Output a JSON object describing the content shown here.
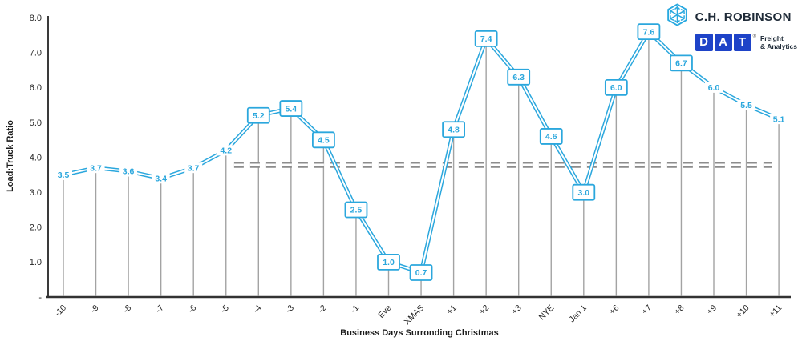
{
  "branding": {
    "company_name": "C.H. ROBINSON",
    "dat_letters": [
      "D",
      "A",
      "T"
    ],
    "dat_registered": "®",
    "dat_tagline_line1": "Freight",
    "dat_tagline_line2": "& Analytics",
    "chr_blue": "#29A9E0",
    "dat_blue": "#1E43C8",
    "text_navy": "#1F2B38"
  },
  "chart_data": {
    "type": "line",
    "title": "",
    "xlabel": "Business Days Surronding Christmas",
    "ylabel": "Load:Truck Ratio",
    "categories": [
      "-10",
      "-9",
      "-8",
      "-7",
      "-6",
      "-5",
      "-4",
      "-3",
      "-2",
      "-1",
      "Eve",
      "XMAS",
      "+1",
      "+2",
      "+3",
      "NYE",
      "Jan 1",
      "+6",
      "+7",
      "+8",
      "+9",
      "+10",
      "+11"
    ],
    "values": [
      3.5,
      3.7,
      3.6,
      3.4,
      3.7,
      4.2,
      5.2,
      5.4,
      4.5,
      2.5,
      1.0,
      0.7,
      4.8,
      7.4,
      6.3,
      4.6,
      3.0,
      6.0,
      7.6,
      6.7,
      6.0,
      5.5,
      5.1
    ],
    "boxed_labels": [
      false,
      false,
      false,
      false,
      false,
      false,
      true,
      true,
      true,
      true,
      true,
      true,
      true,
      true,
      true,
      true,
      true,
      true,
      true,
      true,
      false,
      false,
      false
    ],
    "ylim": [
      0,
      8
    ],
    "ytick_labels": [
      "-",
      "1.0",
      "2.0",
      "3.0",
      "4.0",
      "5.0",
      "6.0",
      "7.0",
      "8.0"
    ],
    "grid": "off",
    "legend": "none",
    "drop_lines": true,
    "line_color": "#2BA7DD",
    "line_style": "double",
    "reference_line": {
      "value": 3.78,
      "style": "double-dashed",
      "color": "#8c8c8c",
      "start_index": 5.25,
      "end_index": 21.8
    }
  }
}
